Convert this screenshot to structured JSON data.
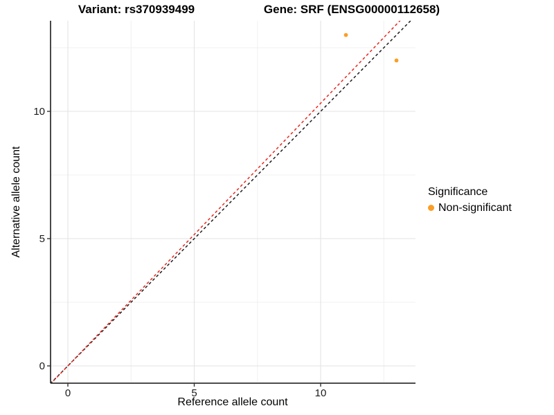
{
  "header": {
    "variant_title": "Variant: rs370939499",
    "gene_title": "Gene: SRF (ENSG00000112658)"
  },
  "axes": {
    "x_label": "Reference allele count",
    "y_label": "Alternative allele count",
    "x_tick_labels": [
      "0",
      "5",
      "10"
    ],
    "y_tick_labels": [
      "0",
      "5",
      "10"
    ]
  },
  "legend": {
    "title": "Significance",
    "items": [
      {
        "label": "Non-significant",
        "color": "#FB9E26",
        "marker": "circle"
      }
    ]
  },
  "colors": {
    "point": "#FB9E26",
    "fit_line": "#E8251C",
    "identity_line": "#1C1C1C",
    "axis": "#333333",
    "grid_major": "#E3E3E3",
    "grid_minor": "#F0F0F0"
  },
  "chart_data": {
    "type": "scatter",
    "title": "Variant: rs370939499 — Gene: SRF (ENSG00000112658)",
    "xlabel": "Reference allele count",
    "ylabel": "Alternative allele count",
    "xlim": [
      -0.68,
      13.75
    ],
    "ylim": [
      -0.68,
      13.56
    ],
    "x_major_ticks": [
      0,
      5,
      10
    ],
    "y_major_ticks": [
      0,
      5,
      10
    ],
    "x_minor_ticks": [
      2.5,
      7.5,
      12.5
    ],
    "y_minor_ticks": [
      2.5,
      7.5,
      12.5
    ],
    "grid": true,
    "legend_position": "right-outside",
    "series": [
      {
        "name": "Non-significant",
        "color": "#FB9E26",
        "marker": "circle",
        "points": [
          [
            11,
            13
          ],
          [
            13,
            12
          ]
        ]
      }
    ],
    "lines": [
      {
        "name": "identity-line",
        "slope": 1.0,
        "intercept": 0,
        "color": "#1C1C1C",
        "style": "dashed"
      },
      {
        "name": "fit-line",
        "slope": 1.032,
        "intercept": 0,
        "color": "#E8251C",
        "style": "dashed"
      }
    ]
  }
}
